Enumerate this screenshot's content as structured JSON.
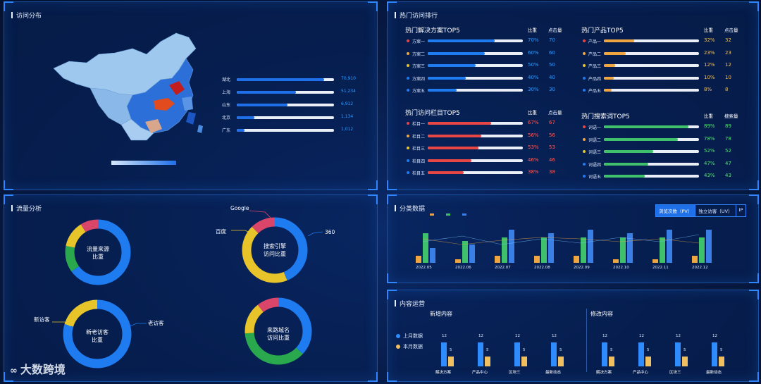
{
  "colors": {
    "blue": "#1e7bf0",
    "light": "#e9eef7",
    "red": "#e84545",
    "orange": "#f0a640",
    "green": "#3fc16b",
    "yellow": "#e7c52a"
  },
  "visit": {
    "title": "访问分布",
    "items": [
      {
        "label": "湖北",
        "value": "70,910",
        "fill": 0.9
      },
      {
        "label": "上海",
        "value": "51,234",
        "fill": 0.61
      },
      {
        "label": "山东",
        "value": "6,912",
        "fill": 0.52
      },
      {
        "label": "北京",
        "value": "1,134",
        "fill": 0.18
      },
      {
        "label": "广东",
        "value": "1,012",
        "fill": 0.08
      }
    ]
  },
  "hot": {
    "title": "热门访问排行",
    "solution": {
      "title": "热门解决方案TOP5",
      "col1": "比重",
      "col2": "点击量",
      "items": [
        {
          "label": "方案一",
          "pct": "70%",
          "val": "70",
          "f": 0.7
        },
        {
          "label": "方案二",
          "pct": "60%",
          "val": "60",
          "f": 0.6
        },
        {
          "label": "方案三",
          "pct": "50%",
          "val": "50",
          "f": 0.5
        },
        {
          "label": "方案四",
          "pct": "40%",
          "val": "40",
          "f": 0.4
        },
        {
          "label": "方案五",
          "pct": "30%",
          "val": "30",
          "f": 0.3
        }
      ]
    },
    "product": {
      "title": "热门产品TOP5",
      "col1": "比重",
      "col2": "点击量",
      "items": [
        {
          "label": "产品一",
          "pct": "32%",
          "val": "32",
          "f": 0.32
        },
        {
          "label": "产品二",
          "pct": "23%",
          "val": "23",
          "f": 0.23
        },
        {
          "label": "产品三",
          "pct": "12%",
          "val": "12",
          "f": 0.12
        },
        {
          "label": "产品四",
          "pct": "10%",
          "val": "10",
          "f": 0.1
        },
        {
          "label": "产品五",
          "pct": "8%",
          "val": "8",
          "f": 0.08
        }
      ]
    },
    "column": {
      "title": "热门访问栏目TOP5",
      "col1": "比重",
      "col2": "点击量",
      "items": [
        {
          "label": "栏目一",
          "pct": "67%",
          "val": "67",
          "f": 0.67
        },
        {
          "label": "栏目二",
          "pct": "56%",
          "val": "56",
          "f": 0.56
        },
        {
          "label": "栏目三",
          "pct": "53%",
          "val": "53",
          "f": 0.53
        },
        {
          "label": "栏目四",
          "pct": "46%",
          "val": "46",
          "f": 0.46
        },
        {
          "label": "栏目五",
          "pct": "38%",
          "val": "38",
          "f": 0.38
        }
      ]
    },
    "search": {
      "title": "热门搜索词TOP5",
      "col1": "比重",
      "col2": "搜索量",
      "items": [
        {
          "label": "词语一",
          "pct": "89%",
          "val": "89",
          "f": 0.89
        },
        {
          "label": "词语二",
          "pct": "78%",
          "val": "78",
          "f": 0.78
        },
        {
          "label": "词语三",
          "pct": "52%",
          "val": "52",
          "f": 0.52
        },
        {
          "label": "词语四",
          "pct": "47%",
          "val": "47",
          "f": 0.47
        },
        {
          "label": "词语五",
          "pct": "43%",
          "val": "43",
          "f": 0.43
        }
      ]
    }
  },
  "traffic": {
    "title": "流量分析",
    "d1": {
      "label1": "流量来源",
      "label2": "比重"
    },
    "d2": {
      "label1": "搜索引擎",
      "label2": "访问比重",
      "google": "Google",
      "baidu": "百度",
      "n360": "360"
    },
    "d3": {
      "label1": "新老访客",
      "label2": "比重",
      "new": "新访客",
      "old": "老访客"
    },
    "d4": {
      "label1": "来路城名",
      "label2": "访问比重"
    }
  },
  "category": {
    "title": "分类数据",
    "tabs": [
      "浏览次数（PV）",
      "独立访客（UV）",
      "IP"
    ],
    "chart_data": {
      "type": "bar",
      "categories": [
        "2022.05",
        "2022.06",
        "2022.07",
        "2022.08",
        "2022.09",
        "2022.10",
        "2022.11",
        "2022.12"
      ],
      "series": [
        {
          "values": [
            2,
            1,
            2,
            2,
            2,
            1,
            1,
            2
          ],
          "color": "#f0a640"
        },
        {
          "values": [
            8,
            6,
            7,
            7,
            7,
            7,
            7,
            7
          ],
          "color": "#3fc16b"
        },
        {
          "values": [
            4,
            5,
            9,
            8,
            9,
            8,
            9,
            9
          ],
          "color": "#3a7fe6"
        }
      ]
    }
  },
  "content": {
    "title": "内容运营",
    "new_title": "新增内容",
    "mod_title": "修改内容",
    "legend": [
      "上月数据",
      "本月数据"
    ],
    "chart_data": {
      "type": "bar",
      "categories": [
        "解决方案",
        "产品中心",
        "区块三",
        "最新动态"
      ],
      "series": [
        {
          "name": "上月数据",
          "values": [
            12,
            12,
            12,
            12
          ]
        },
        {
          "name": "本月数据",
          "values": [
            5,
            5,
            5,
            5
          ]
        }
      ]
    }
  },
  "logo": "大数跨境"
}
